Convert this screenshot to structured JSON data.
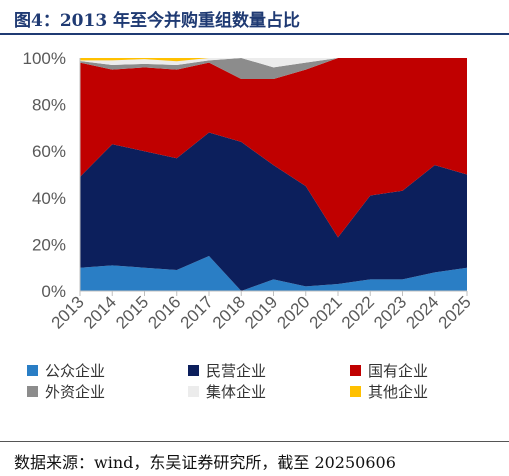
{
  "figure_label": "图4：2013 年至今并购重组数量占比",
  "source_note": "数据来源：wind，东吴证券研究所，截至 20250606",
  "chart_data": {
    "type": "area",
    "stacked": true,
    "percent": true,
    "title": "",
    "xlabel": "",
    "ylabel": "",
    "ylim": [
      0,
      100
    ],
    "y_ticks": [
      "0%",
      "20%",
      "40%",
      "60%",
      "80%",
      "100%"
    ],
    "categories": [
      "2013",
      "2014",
      "2015",
      "2016",
      "2017",
      "2018",
      "2019",
      "2020",
      "2021",
      "2022",
      "2023",
      "2024",
      "2025"
    ],
    "series": [
      {
        "name": "公众企业",
        "color": "#2a7ec5",
        "values": [
          10,
          11,
          10,
          9,
          15,
          0,
          5,
          2,
          3,
          5,
          5,
          8,
          10
        ]
      },
      {
        "name": "民营企业",
        "color": "#0c1f5c",
        "values": [
          39,
          52,
          50,
          48,
          53,
          64,
          49,
          43,
          20,
          36,
          38,
          46,
          40
        ]
      },
      {
        "name": "国有企业",
        "color": "#c00000",
        "values": [
          49,
          32,
          36,
          38,
          30,
          27,
          37,
          50,
          77,
          59,
          57,
          46,
          50
        ]
      },
      {
        "name": "外资企业",
        "color": "#8c8c8c",
        "values": [
          0.7,
          2,
          1.5,
          2,
          1,
          9,
          5,
          3,
          0,
          0,
          0,
          0,
          0
        ]
      },
      {
        "name": "集体企业",
        "color": "#ececec",
        "values": [
          0.3,
          2,
          2,
          1.6,
          1,
          0,
          4,
          2,
          0,
          0,
          0,
          0,
          0
        ]
      },
      {
        "name": "其他企业",
        "color": "#ffc000",
        "values": [
          1,
          1,
          0.5,
          1.4,
          0,
          0,
          0,
          0,
          0,
          0,
          0,
          0,
          0
        ]
      }
    ],
    "legend_position": "bottom",
    "grid": false
  }
}
